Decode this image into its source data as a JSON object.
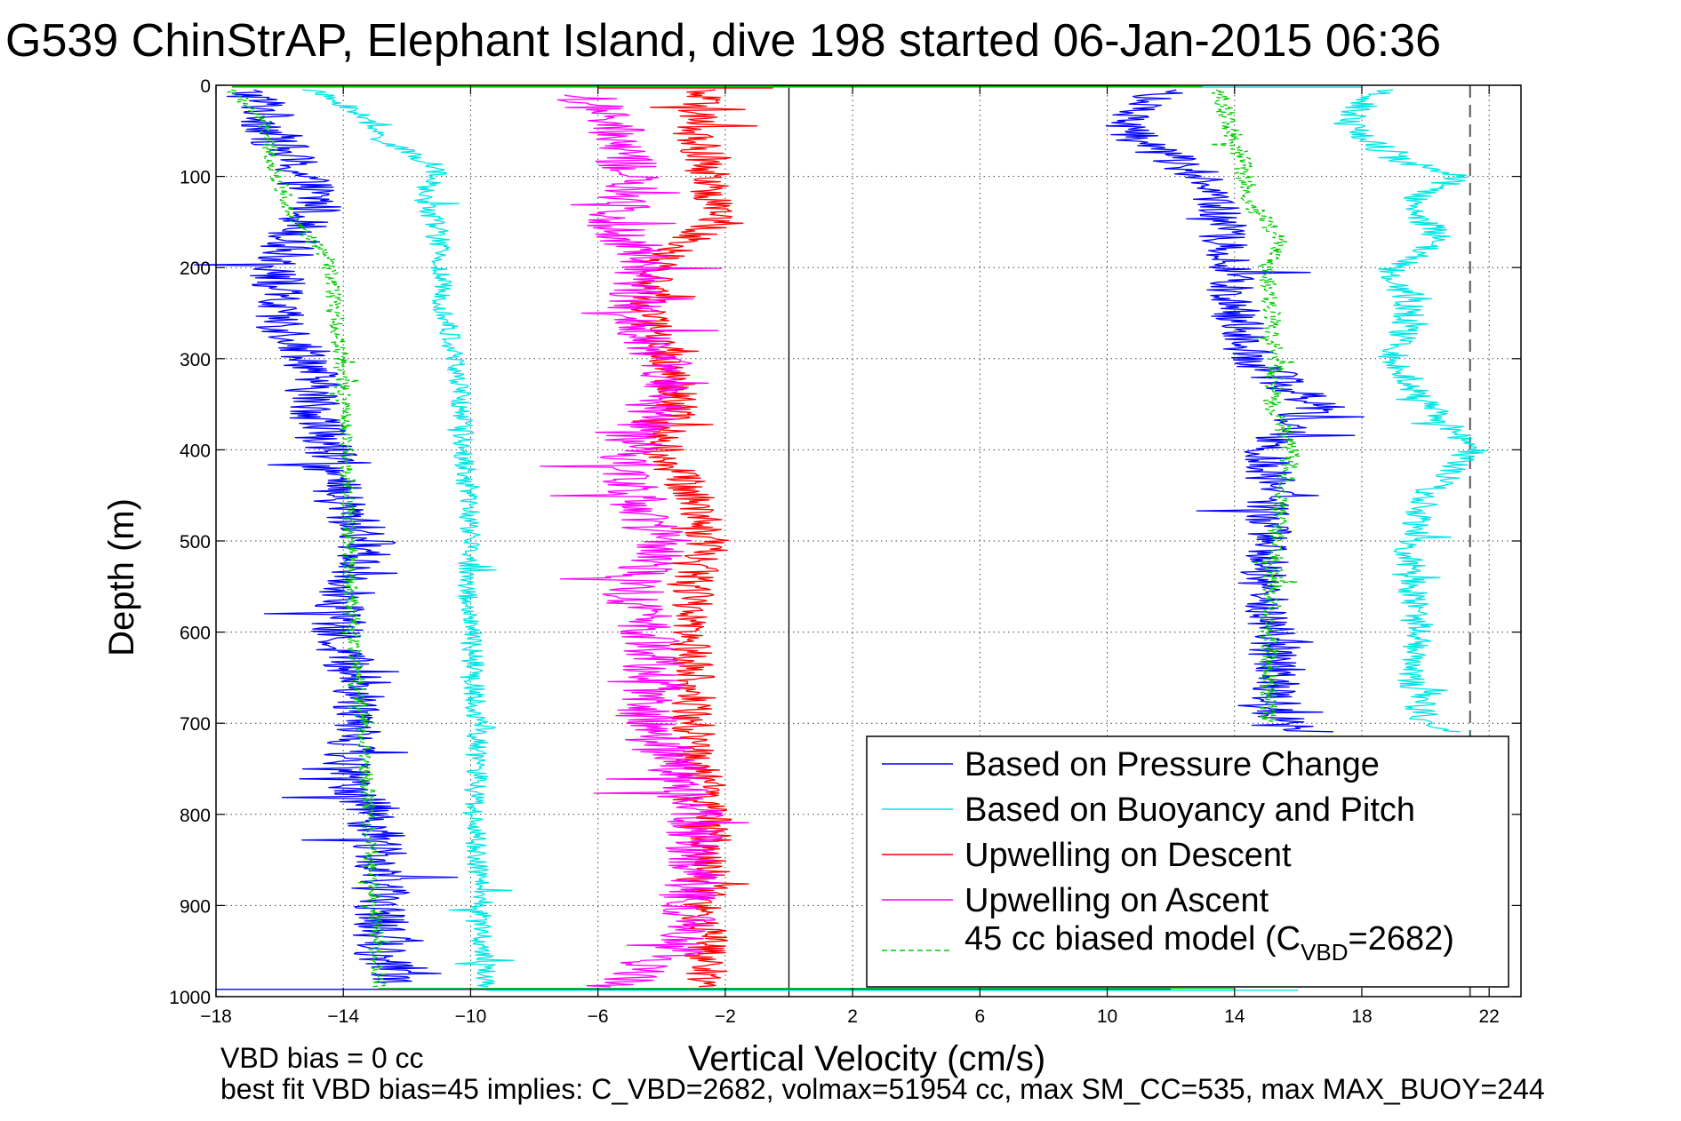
{
  "chart_data": {
    "type": "line",
    "title": "G539 ChinStrAP, Elephant Island, dive 198 started 06-Jan-2015 06:36",
    "xlabel": "Vertical Velocity (cm/s)",
    "ylabel": "Depth (m)",
    "xlim": [
      -18,
      23
    ],
    "ylim": [
      0,
      1000
    ],
    "y_reversed": true,
    "x_ticks": [
      -18,
      -14,
      -10,
      -6,
      -2,
      2,
      6,
      10,
      14,
      18,
      22
    ],
    "y_ticks": [
      0,
      100,
      200,
      300,
      400,
      500,
      600,
      700,
      800,
      900,
      1000
    ],
    "grid": true,
    "vertical_lines": [
      {
        "x": 0,
        "style": "solid",
        "color": "#000000"
      },
      {
        "x": 21.4,
        "style": "dashed",
        "color": "#555555"
      }
    ],
    "legend": {
      "position": "bottom-right",
      "entries": [
        {
          "label": "Based on Pressure Change",
          "color": "#0000ff",
          "dash": "solid"
        },
        {
          "label": "Based on Buoyancy and Pitch",
          "color": "#00e5e5",
          "dash": "solid"
        },
        {
          "label": "Upwelling on Descent",
          "color": "#ff0000",
          "dash": "solid"
        },
        {
          "label": "Upwelling on Ascent",
          "color": "#ff00ff",
          "dash": "solid"
        },
        {
          "label_main": "45 cc biased model (C",
          "label_sub": "VBD",
          "label_tail": "=2682)",
          "color": "#00cc00",
          "dash": "dashed"
        }
      ]
    },
    "series": [
      {
        "key": "pressure_descent",
        "color": "#0000ff",
        "dash": "solid",
        "depth": [
          5,
          20,
          50,
          90,
          130,
          170,
          200,
          250,
          300,
          350,
          400,
          450,
          500,
          550,
          600,
          650,
          700,
          750,
          800,
          850,
          900,
          950,
          985
        ],
        "v": [
          -17.2,
          -16.5,
          -16.3,
          -15.5,
          -14.8,
          -15.6,
          -16.0,
          -16.2,
          -15.0,
          -14.9,
          -14.5,
          -14.3,
          -13.2,
          -13.8,
          -14.3,
          -13.6,
          -13.4,
          -14.0,
          -13.0,
          -12.9,
          -12.8,
          -12.8,
          -12.3
        ],
        "noise": 0.9
      },
      {
        "key": "buoyancy_descent",
        "color": "#00e5e5",
        "dash": "solid",
        "depth": [
          5,
          30,
          60,
          90,
          120,
          160,
          200,
          250,
          300,
          350,
          400,
          450,
          500,
          550,
          600,
          650,
          700,
          750,
          800,
          850,
          900,
          950,
          990
        ],
        "v": [
          -15.0,
          -13.5,
          -12.8,
          -11.0,
          -11.5,
          -11.0,
          -11.0,
          -10.8,
          -10.5,
          -10.3,
          -10.2,
          -10.1,
          -10.0,
          -10.1,
          -10.0,
          -9.9,
          -9.8,
          -9.8,
          -9.9,
          -9.8,
          -9.7,
          -9.6,
          -9.5
        ],
        "noise": 0.35
      },
      {
        "key": "model_descent",
        "color": "#00cc00",
        "dash": "dashed",
        "depth": [
          5,
          40,
          90,
          150,
          190,
          230,
          300,
          400,
          500,
          600,
          700,
          800,
          900,
          990
        ],
        "v": [
          -17.5,
          -16.5,
          -16.2,
          -15.5,
          -14.5,
          -14.3,
          -14.1,
          -13.9,
          -13.8,
          -13.7,
          -13.4,
          -13.2,
          -13.0,
          -12.9
        ],
        "noise": 0.25
      },
      {
        "key": "upwelling_descent",
        "color": "#ff0000",
        "dash": "solid",
        "depth": [
          5,
          50,
          100,
          150,
          190,
          250,
          300,
          350,
          400,
          450,
          500,
          550,
          600,
          650,
          700,
          750,
          800,
          850,
          900,
          950,
          990
        ],
        "v": [
          -2.8,
          -3.0,
          -2.5,
          -2.2,
          -4.0,
          -4.5,
          -3.8,
          -3.5,
          -4.0,
          -3.0,
          -2.5,
          -3.0,
          -3.2,
          -3.0,
          -3.0,
          -2.8,
          -2.5,
          -2.5,
          -2.7,
          -2.6,
          -2.6
        ],
        "noise": 0.7
      },
      {
        "key": "upwelling_ascent",
        "color": "#ff00ff",
        "dash": "solid",
        "depth": [
          10,
          50,
          100,
          150,
          190,
          250,
          300,
          350,
          400,
          450,
          500,
          550,
          600,
          650,
          700,
          750,
          800,
          850,
          900,
          950,
          990
        ],
        "v": [
          -6.5,
          -5.5,
          -5.0,
          -5.5,
          -4.5,
          -4.8,
          -4.0,
          -4.2,
          -5.0,
          -4.8,
          -4.0,
          -5.0,
          -4.3,
          -4.2,
          -4.5,
          -3.5,
          -3.0,
          -3.0,
          -3.2,
          -3.5,
          -5.5
        ],
        "noise": 1.0
      },
      {
        "key": "pressure_ascent",
        "color": "#0000ff",
        "dash": "solid",
        "depth": [
          5,
          30,
          60,
          100,
          140,
          200,
          250,
          300,
          350,
          400,
          450,
          500,
          550,
          600,
          650,
          700,
          710
        ],
        "v": [
          12.0,
          10.5,
          11.0,
          13.0,
          13.5,
          13.8,
          14.0,
          14.5,
          16.5,
          15.0,
          15.2,
          15.0,
          14.8,
          15.3,
          15.2,
          15.4,
          16.5
        ],
        "noise": 0.8
      },
      {
        "key": "buoyancy_ascent",
        "color": "#00e5e5",
        "dash": "solid",
        "depth": [
          5,
          40,
          80,
          100,
          130,
          170,
          200,
          250,
          300,
          350,
          400,
          450,
          500,
          550,
          600,
          650,
          700,
          710
        ],
        "v": [
          18.5,
          17.5,
          19.0,
          21.0,
          19.5,
          20.5,
          19.0,
          19.5,
          19.0,
          20.0,
          21.5,
          20.0,
          19.5,
          19.5,
          19.8,
          19.6,
          20.0,
          21.0
        ],
        "noise": 0.5
      },
      {
        "key": "model_ascent",
        "color": "#00cc00",
        "dash": "dashed",
        "depth": [
          5,
          40,
          80,
          130,
          170,
          200,
          250,
          300,
          350,
          400,
          450,
          500,
          550,
          600,
          650,
          700
        ],
        "v": [
          13.5,
          13.8,
          14.2,
          14.5,
          15.5,
          15.0,
          15.2,
          15.3,
          15.2,
          15.8,
          15.5,
          15.3,
          15.2,
          15.1,
          15.1,
          15.0
        ],
        "noise": 0.3
      }
    ],
    "transitions": [
      {
        "color": "#0000ff",
        "x1": -18,
        "x2": 12,
        "depth": 992
      },
      {
        "color": "#00e5e5",
        "x1": -9.5,
        "x2": 16,
        "depth": 993
      },
      {
        "color": "#00cc00",
        "x1": -12.9,
        "x2": 14,
        "depth": 991
      },
      {
        "color": "#0000ff",
        "x1": -0.5,
        "x2": 12,
        "depth": 1
      },
      {
        "color": "#00e5e5",
        "x1": -17.5,
        "x2": 18,
        "depth": 2
      },
      {
        "color": "#00cc00",
        "x1": -17.5,
        "x2": 13,
        "depth": 1.5
      },
      {
        "color": "#ff0000",
        "x1": -6,
        "x2": -0.5,
        "depth": 3
      }
    ]
  },
  "footnotes": {
    "vbd_bias": "VBD bias = 0 cc",
    "best_fit": "best fit VBD bias=45 implies: C_VBD=2682, volmax=51954 cc, max SM_CC=535, max MAX_BUOY=244"
  }
}
